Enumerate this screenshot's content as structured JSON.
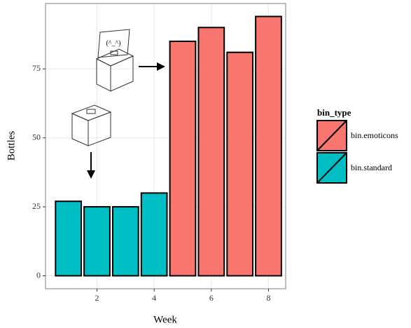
{
  "chart_data": {
    "type": "bar",
    "x_label": "Week",
    "y_label": "Bottles",
    "legend_title": "bin_type",
    "emoticon": "(^_^)",
    "series": [
      {
        "name": "bin.emoticons",
        "color": "#F8766D",
        "x": [
          5,
          6,
          7,
          8
        ],
        "values": [
          85,
          90,
          81,
          94
        ]
      },
      {
        "name": "bin.standard",
        "color": "#00BFC4",
        "x": [
          1,
          2,
          3,
          4
        ],
        "values": [
          27,
          25,
          25,
          30
        ]
      }
    ],
    "bar_width": 0.9,
    "xlim": [
      0.2,
      8.6
    ],
    "xticks": [
      2,
      4,
      6,
      8
    ],
    "ylim": [
      -4.7,
      98.7
    ],
    "yticks": [
      0,
      25,
      50,
      75
    ],
    "grid": true,
    "legend": "right"
  }
}
